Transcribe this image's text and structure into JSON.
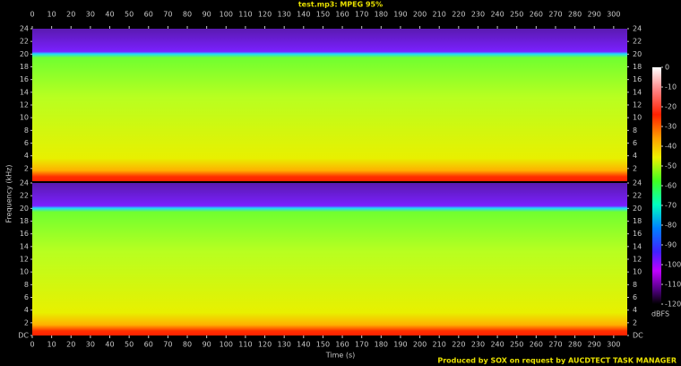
{
  "chart_data": {
    "type": "spectrogram",
    "title": "test.mp3: MPEG 95%",
    "xlabel": "Time (s)",
    "ylabel": "Frequency (kHz)",
    "xlim": [
      0,
      307
    ],
    "xticks": [
      0,
      10,
      20,
      30,
      40,
      50,
      60,
      70,
      80,
      90,
      100,
      110,
      120,
      130,
      140,
      150,
      160,
      170,
      180,
      190,
      200,
      210,
      220,
      230,
      240,
      250,
      260,
      270,
      280,
      290,
      300
    ],
    "panels": [
      {
        "ylim": [
          0,
          24
        ],
        "yticks": [
          2,
          4,
          6,
          8,
          10,
          12,
          14,
          16,
          18,
          20,
          22,
          24
        ]
      },
      {
        "ylim": [
          0,
          24
        ],
        "yticks": [
          {
            "value": 0,
            "label": "DC"
          },
          2,
          4,
          6,
          8,
          10,
          12,
          14,
          16,
          18,
          20,
          22,
          24
        ]
      }
    ],
    "colorbar": {
      "label": "dBFS",
      "lim": [
        -120,
        0
      ],
      "ticks": [
        0,
        -10,
        -20,
        -30,
        -40,
        -50,
        -60,
        -70,
        -80,
        -90,
        -100,
        -110,
        -120
      ]
    },
    "footer": "Produced by SOX on request by AUCDTECT TASK MANAGER"
  }
}
